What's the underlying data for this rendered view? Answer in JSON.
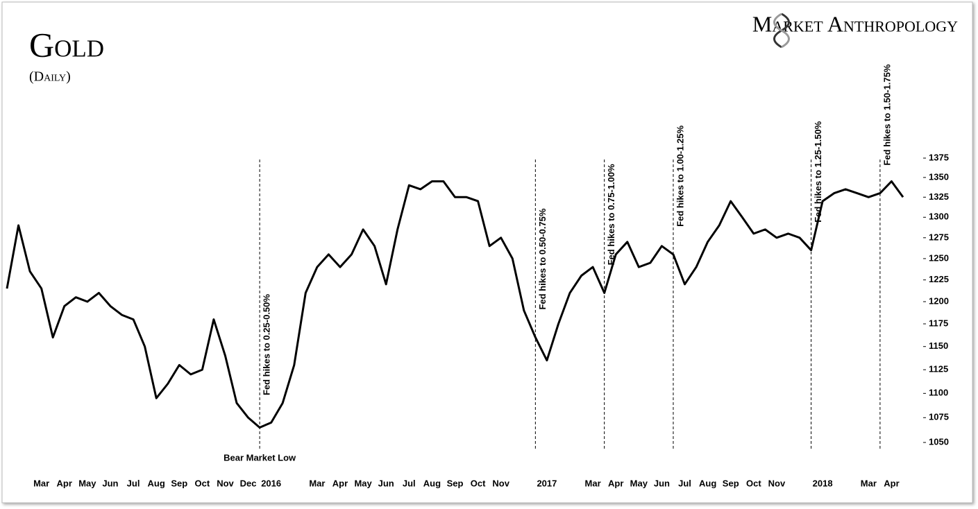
{
  "chart_data": {
    "type": "line",
    "title": "Gold",
    "subtitle": "(Daily)",
    "brand": "Market Anthropology",
    "categories": [
      null,
      null,
      null,
      "Mar",
      null,
      "Apr",
      null,
      "May",
      null,
      "Jun",
      null,
      "Jul",
      null,
      "Aug",
      null,
      "Sep",
      null,
      "Oct",
      null,
      "Nov",
      null,
      "Dec",
      null,
      "2016",
      null,
      null,
      null,
      "Mar",
      null,
      "Apr",
      null,
      "May",
      null,
      "Jun",
      null,
      "Jul",
      null,
      "Aug",
      null,
      "Sep",
      null,
      "Oct",
      null,
      "Nov",
      null,
      null,
      null,
      "2017",
      null,
      null,
      null,
      "Mar",
      null,
      "Apr",
      null,
      "May",
      null,
      "Jun",
      null,
      "Jul",
      null,
      "Aug",
      null,
      "Sep",
      null,
      "Oct",
      null,
      "Nov",
      null,
      null,
      null,
      "2018",
      null,
      null,
      null,
      "Mar",
      null,
      "Apr",
      null
    ],
    "series": [
      {
        "name": "Gold",
        "color": "#000000",
        "values": [
          1215,
          1290,
          1235,
          1215,
          1160,
          1195,
          1205,
          1200,
          1210,
          1195,
          1185,
          1180,
          1150,
          1095,
          1110,
          1130,
          1120,
          1125,
          1180,
          1140,
          1090,
          1075,
          1065,
          1070,
          1090,
          1130,
          1210,
          1240,
          1255,
          1240,
          1255,
          1285,
          1265,
          1220,
          1285,
          1340,
          1335,
          1345,
          1345,
          1325,
          1325,
          1320,
          1265,
          1275,
          1250,
          1190,
          1160,
          1135,
          1175,
          1210,
          1230,
          1240,
          1210,
          1255,
          1270,
          1240,
          1245,
          1265,
          1255,
          1220,
          1240,
          1270,
          1290,
          1320,
          1300,
          1280,
          1285,
          1275,
          1280,
          1275,
          1260,
          1320,
          1330,
          1335,
          1330,
          1325,
          1330,
          1345,
          1325
        ]
      }
    ],
    "log_scale": true,
    "ylim": [
      1040,
      1390
    ],
    "yticks": [
      1050,
      1075,
      1100,
      1125,
      1150,
      1175,
      1200,
      1225,
      1250,
      1275,
      1300,
      1325,
      1350,
      1375
    ],
    "annotations": [
      {
        "text": "Fed hikes to 0.25-0.50%",
        "index": 22
      },
      {
        "text": "Fed hikes to 0.50-0.75%",
        "index": 46
      },
      {
        "text": "Fed hikes to 0.75-1.00%",
        "index": 52
      },
      {
        "text": "Fed hikes to 1.00-1.25%",
        "index": 58
      },
      {
        "text": "Fed hikes to 1.25-1.50%",
        "index": 70
      },
      {
        "text": "Fed hikes to 1.50-1.75%",
        "index": 76
      },
      {
        "text": "Bear Market Low",
        "index": 22
      }
    ]
  }
}
